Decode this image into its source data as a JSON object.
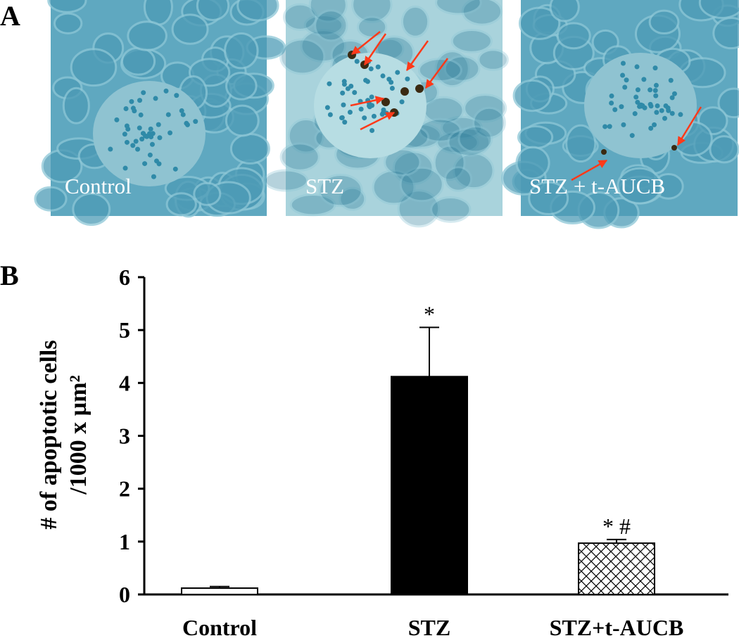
{
  "panel_a": {
    "label": "A",
    "images": [
      {
        "caption": "Control"
      },
      {
        "caption": "STZ"
      },
      {
        "caption": "STZ + t-AUCB"
      }
    ]
  },
  "chart_data": {
    "type": "bar",
    "panel_label": "B",
    "ylabel": [
      "# of apoptotic cells",
      "/1000 x µm²"
    ],
    "categories": [
      "Control",
      "STZ",
      "STZ+t-AUCB"
    ],
    "values": [
      0.12,
      4.12,
      0.97
    ],
    "errors": [
      0.03,
      0.93,
      0.07
    ],
    "markers": [
      null,
      "*",
      "* #"
    ],
    "colors": [
      "#ffffff",
      "#000000",
      "#ffffff"
    ],
    "hatched": [
      false,
      false,
      true
    ],
    "ylim": [
      0,
      6
    ],
    "yticks": [
      0,
      1,
      2,
      3,
      4,
      5,
      6
    ]
  }
}
